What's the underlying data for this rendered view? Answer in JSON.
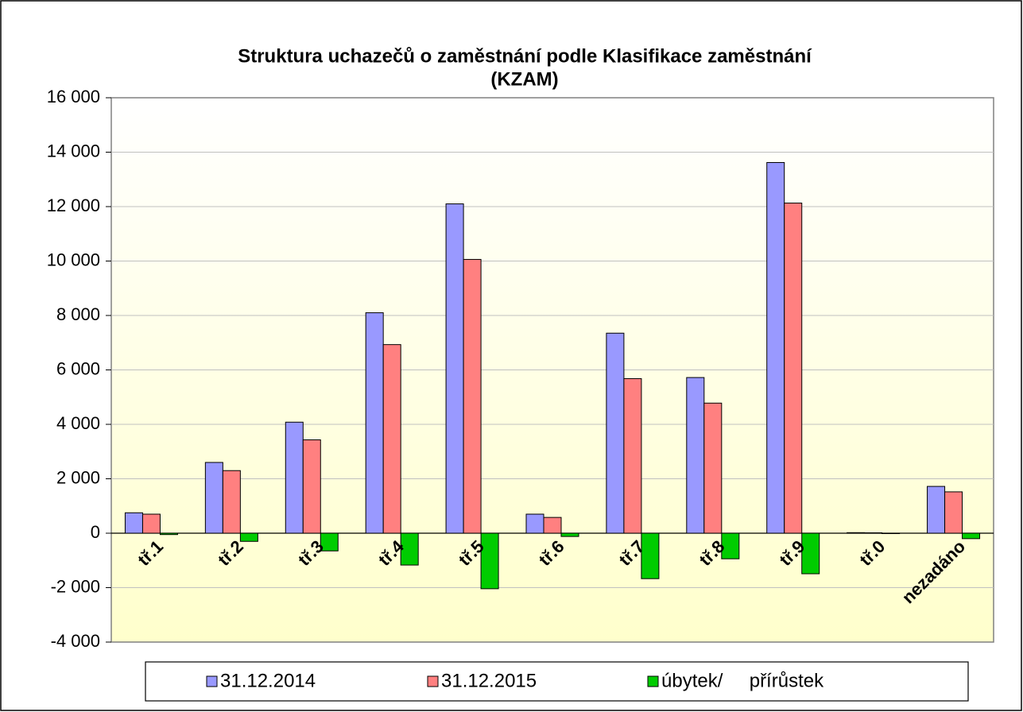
{
  "chart_data": {
    "type": "bar",
    "title": [
      "Struktura uchazečů o zaměstnání podle Klasifikace zaměstnání",
      "(KZAM)"
    ],
    "categories": [
      "tř.1",
      "tř.2",
      "tř.3",
      "tř.4",
      "tř.5",
      "tř.6",
      "tř.7",
      "tř.8",
      "tř.9",
      "tř.0",
      "nezadáno"
    ],
    "series": [
      {
        "name": "31.12.2014",
        "color": "#9999ff",
        "values": [
          750,
          2600,
          4080,
          8100,
          12100,
          700,
          7350,
          5720,
          13620,
          20,
          1720
        ]
      },
      {
        "name": "31.12.2015",
        "color": "#ff8080",
        "values": [
          700,
          2300,
          3430,
          6930,
          10060,
          580,
          5680,
          4780,
          12130,
          15,
          1520
        ]
      },
      {
        "name": "úbytek/     přírůstek",
        "color": "#00cc00",
        "values": [
          -50,
          -300,
          -650,
          -1170,
          -2040,
          -120,
          -1670,
          -940,
          -1490,
          -5,
          -200
        ]
      }
    ],
    "ylim": [
      -4000,
      16000
    ],
    "yticks": [
      {
        "value": -4000,
        "label": "-4 000"
      },
      {
        "value": -2000,
        "label": "-2 000"
      },
      0,
      {
        "value": 2000,
        "label": "2 000"
      },
      {
        "value": 4000,
        "label": "4 000"
      },
      {
        "value": 6000,
        "label": "6 000"
      },
      {
        "value": 8000,
        "label": "8 000"
      },
      {
        "value": 10000,
        "label": "10 000"
      },
      {
        "value": 12000,
        "label": "12 000"
      },
      {
        "value": 14000,
        "label": "14 000"
      },
      {
        "value": 16000,
        "label": "16 000"
      }
    ],
    "grid": true
  }
}
